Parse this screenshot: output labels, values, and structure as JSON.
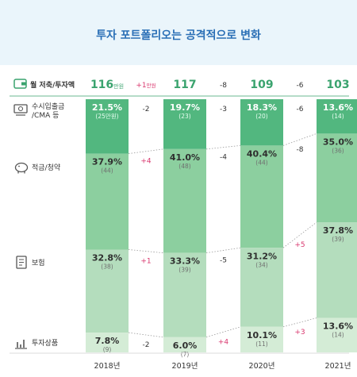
{
  "title": "투자 포트폴리오는 공격적으로 변화",
  "chart_data": {
    "type": "bar",
    "stacked": true,
    "categories": [
      "2018년",
      "2019년",
      "2020년",
      "2021년"
    ],
    "totals": {
      "label": "월 저축/투자액",
      "values": [
        "116",
        "117",
        "109",
        "103"
      ],
      "unit": "만원",
      "changes": [
        "+1",
        "-8",
        "-6"
      ],
      "change_unit": "만원"
    },
    "series": [
      {
        "name": "수시입출금/CMA 등",
        "percent": [
          21.5,
          19.7,
          18.3,
          13.6
        ],
        "amount": [
          "(25만원)",
          "(23)",
          "(20)",
          "(14)"
        ],
        "changes": [
          "-2",
          "-3",
          "-6"
        ],
        "color": "#52b77f"
      },
      {
        "name": "적금/청약",
        "percent": [
          37.9,
          41.0,
          40.4,
          35.0
        ],
        "amount": [
          "(44)",
          "(48)",
          "(44)",
          "(36)"
        ],
        "changes": [
          "+4",
          "-4",
          "-8"
        ],
        "color": "#8ccf9f"
      },
      {
        "name": "보험",
        "percent": [
          32.8,
          33.3,
          31.2,
          37.8
        ],
        "amount": [
          "(38)",
          "(39)",
          "(34)",
          "(39)"
        ],
        "changes": [
          "+1",
          "-5",
          "+5"
        ],
        "color": "#b4ddbd"
      },
      {
        "name": "투자상품",
        "percent": [
          7.8,
          6.0,
          10.1,
          13.6
        ],
        "amount": [
          "(9)",
          "(7)",
          "(11)",
          "(14)"
        ],
        "changes": [
          "-2",
          "+4",
          "+3"
        ],
        "color": "#d4ecd6"
      }
    ],
    "icons": [
      "wallet-icon",
      "cash-icon",
      "piggy-bank-icon",
      "insurance-document-icon",
      "stock-chart-icon"
    ]
  }
}
